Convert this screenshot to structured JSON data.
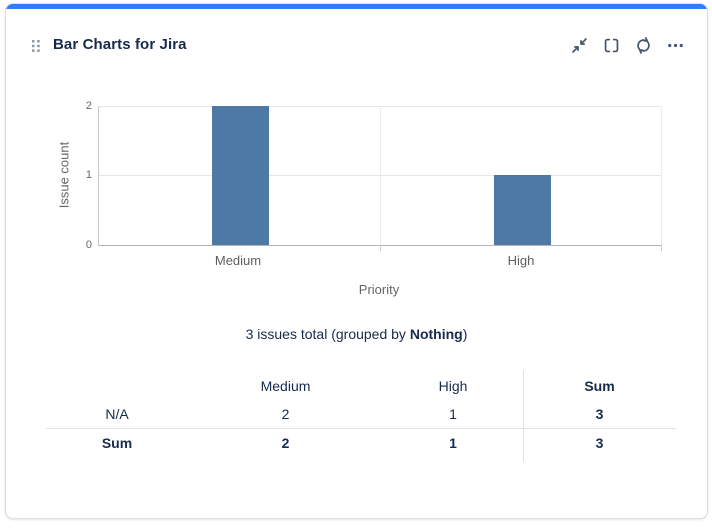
{
  "colors": {
    "top_bar": "#2E7EF6",
    "bar": "#4E79A7",
    "title_text": "#172B4D",
    "icon": "#44546F"
  },
  "header": {
    "title": "Bar Charts for Jira",
    "icons": {
      "drag": "drag-handle-icon",
      "collapse": "collapse-icon",
      "expand": "expand-icon",
      "refresh": "refresh-icon",
      "more": "more-icon"
    }
  },
  "chart_data": {
    "type": "bar",
    "title": "",
    "categories": [
      "Medium",
      "High"
    ],
    "values": [
      2,
      1
    ],
    "xlabel": "Priority",
    "ylabel": "Issue count",
    "ylim": [
      0,
      2
    ],
    "yticks": [
      0,
      1,
      2
    ],
    "grid": true,
    "legend": false,
    "bar_color": "#4E79A7"
  },
  "summary": {
    "prefix": "3 issues total (grouped by ",
    "bold": "Nothing",
    "suffix": ")"
  },
  "table": {
    "columns": [
      "",
      "Medium",
      "High",
      "Sum"
    ],
    "rows": [
      [
        "N/A",
        "2",
        "1",
        "3"
      ],
      [
        "Sum",
        "2",
        "1",
        "3"
      ]
    ]
  }
}
